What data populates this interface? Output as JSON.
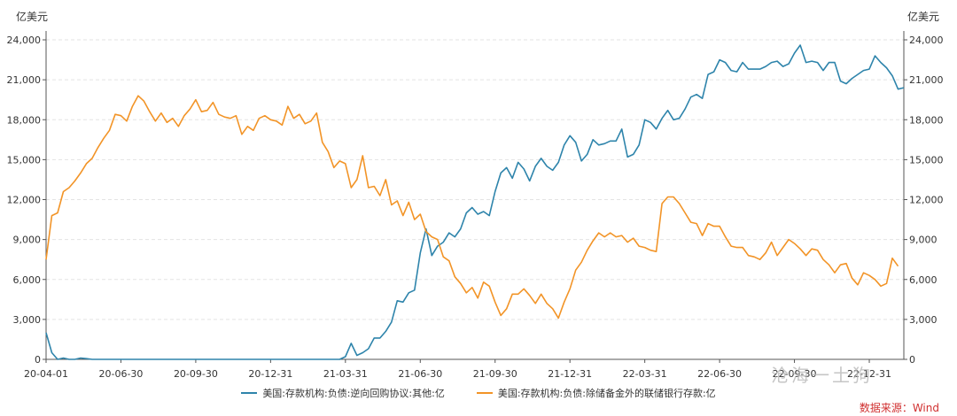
{
  "chart_data": {
    "type": "line",
    "units": {
      "left": "亿美元",
      "right": "亿美元"
    },
    "ylim": [
      0,
      24000
    ],
    "yticks": [
      "0",
      "3,000",
      "6,000",
      "9,000",
      "12,000",
      "15,000",
      "18,000",
      "21,000",
      "24,000"
    ],
    "xtick_labels": [
      "20-04-01",
      "20-06-30",
      "20-09-30",
      "20-12-31",
      "21-03-31",
      "21-06-30",
      "21-09-30",
      "21-12-31",
      "22-03-31",
      "22-06-30",
      "22-09-30",
      "22-12-31"
    ],
    "x_weeks_at_ticks": [
      0,
      13,
      26,
      39,
      52,
      65,
      78,
      91,
      104,
      117,
      130,
      143
    ],
    "grid": true,
    "legend_position": "bottom",
    "series": [
      {
        "name": "美国:存款机构:负债:逆向回购协议:其他:亿",
        "color": "#2e84ab",
        "values": [
          2000,
          500,
          0,
          100,
          0,
          0,
          100,
          50,
          0,
          0,
          0,
          0,
          0,
          0,
          0,
          0,
          0,
          0,
          0,
          0,
          0,
          0,
          0,
          0,
          0,
          0,
          0,
          0,
          0,
          0,
          0,
          0,
          0,
          0,
          0,
          0,
          0,
          0,
          0,
          0,
          0,
          0,
          0,
          0,
          0,
          0,
          0,
          0,
          0,
          0,
          0,
          0,
          200,
          1200,
          300,
          500,
          800,
          1600,
          1600,
          2100,
          2800,
          4400,
          4300,
          5000,
          5200,
          8000,
          9800,
          7800,
          8500,
          8800,
          9500,
          9200,
          9800,
          11000,
          11400,
          10900,
          11100,
          10800,
          12600,
          14000,
          14400,
          13600,
          14800,
          14300,
          13400,
          14500,
          15100,
          14500,
          14200,
          14800,
          16100,
          16800,
          16300,
          14900,
          15400,
          16500,
          16100,
          16200,
          16400,
          16400,
          17300,
          15200,
          15400,
          16100,
          18000,
          17800,
          17300,
          18100,
          18700,
          18000,
          18100,
          18800,
          19700,
          19900,
          19600,
          21400,
          21600,
          22500,
          22300,
          21700,
          21600,
          22300,
          21800,
          21800,
          21800,
          22000,
          22300,
          22400,
          22000,
          22200,
          23000,
          23600,
          22300,
          22400,
          22300,
          21700,
          22300,
          22300,
          20900,
          20700,
          21100,
          21400,
          21700,
          21800,
          22800,
          22300,
          21900,
          21300,
          20300,
          20400
        ]
      },
      {
        "name": "美国:存款机构:负债:除储备金外的联储银行存款:亿",
        "color": "#f29427",
        "values": [
          7500,
          10800,
          11000,
          12600,
          12900,
          13400,
          14000,
          14700,
          15100,
          15900,
          16600,
          17200,
          18400,
          18300,
          17900,
          19000,
          19800,
          19400,
          18600,
          17900,
          18500,
          17800,
          18100,
          17500,
          18300,
          18800,
          19500,
          18600,
          18700,
          19300,
          18400,
          18200,
          18100,
          18300,
          16900,
          17500,
          17200,
          18100,
          18300,
          18000,
          17900,
          17600,
          19000,
          18100,
          18400,
          17700,
          17900,
          18500,
          16300,
          15600,
          14400,
          14900,
          14700,
          12900,
          13500,
          15300,
          12900,
          13000,
          12300,
          13500,
          11600,
          11900,
          10800,
          11800,
          10500,
          10900,
          9600,
          9200,
          9000,
          7700,
          7400,
          6200,
          5700,
          5000,
          5400,
          4600,
          5800,
          5500,
          4300,
          3300,
          3800,
          4900,
          4900,
          5300,
          4800,
          4200,
          4900,
          4200,
          3800,
          3100,
          4300,
          5300,
          6700,
          7300,
          8200,
          8900,
          9500,
          9200,
          9500,
          9200,
          9300,
          8800,
          9100,
          8500,
          8400,
          8200,
          8100,
          11700,
          12200,
          12200,
          11700,
          11000,
          10300,
          10200,
          9300,
          10200,
          10000,
          10000,
          9200,
          8500,
          8400,
          8400,
          7800,
          7700,
          7500,
          8000,
          8800,
          7800,
          8400,
          9000,
          8700,
          8300,
          7800,
          8300,
          8200,
          7500,
          7100,
          6500,
          7100,
          7200,
          6100,
          5600,
          6500,
          6300,
          6000,
          5500,
          5700,
          7600,
          7000
        ]
      }
    ]
  },
  "watermark": "沧海一土狗",
  "source": "数据来源：Wind"
}
